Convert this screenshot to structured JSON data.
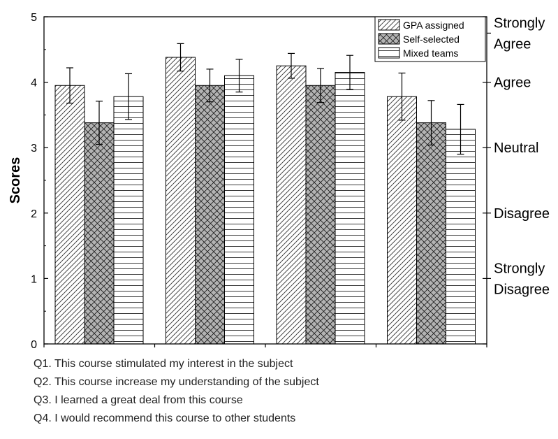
{
  "chart_data": {
    "type": "bar",
    "title": "",
    "xlabel": "",
    "ylabel": "Scores",
    "ylim": [
      0,
      5
    ],
    "yticks": [
      "0",
      "1",
      "2",
      "3",
      "4",
      "5"
    ],
    "categories": [
      "Q1",
      "Q2",
      "Q3",
      "Q4"
    ],
    "series": [
      {
        "name": "GPA assigned",
        "pattern": "diagonal-hatch",
        "values": [
          3.95,
          4.38,
          4.25,
          3.78
        ],
        "errors": [
          0.27,
          0.21,
          0.19,
          0.36
        ]
      },
      {
        "name": "Self-selected",
        "pattern": "crosshatch-gray",
        "values": [
          3.38,
          3.95,
          3.95,
          3.38
        ],
        "errors": [
          0.33,
          0.25,
          0.26,
          0.34
        ]
      },
      {
        "name": "Mixed teams",
        "pattern": "horizontal-lines",
        "values": [
          3.78,
          4.1,
          4.15,
          3.28
        ],
        "errors": [
          0.35,
          0.25,
          0.26,
          0.38
        ]
      }
    ],
    "right_axis_labels": [
      {
        "value": 4.75,
        "lines": [
          "Strongly",
          "Agree"
        ]
      },
      {
        "value": 4,
        "lines": [
          "Agree"
        ]
      },
      {
        "value": 3,
        "lines": [
          "Neutral"
        ]
      },
      {
        "value": 2,
        "lines": [
          "Disagree"
        ]
      },
      {
        "value": 1.0,
        "lines": [
          "Strongly",
          "Disagree"
        ]
      }
    ],
    "legend_position": "top-right",
    "grid": false,
    "colors": {
      "crosshatch_fill": "#b3b3b3",
      "stroke": "#000000"
    }
  },
  "notes": [
    "Q1. This course stimulated my interest in the subject",
    "Q2. This course increase my understanding of the subject",
    "Q3. I learned a great deal from this course",
    "Q4. I would recommend this course to other students"
  ]
}
